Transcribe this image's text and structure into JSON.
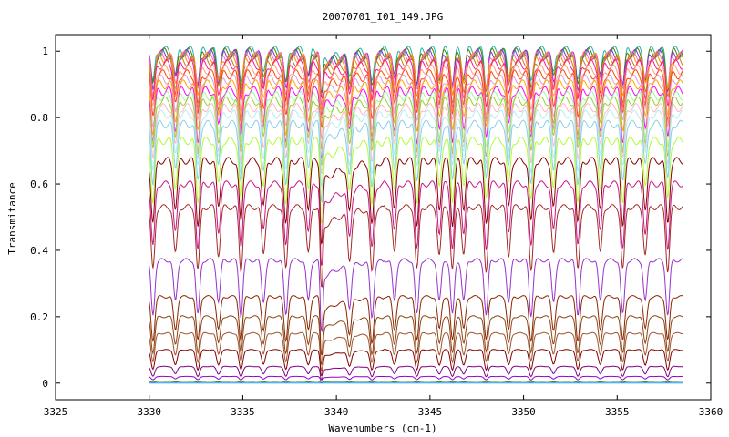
{
  "chart_data": {
    "type": "line",
    "title": "20070701_I01_149.JPG",
    "xlabel": "Wavenumbers (cm-1)",
    "ylabel": "Transmitance",
    "xlim": [
      3325,
      3360
    ],
    "ylim": [
      -0.05,
      1.05
    ],
    "x_ticks": [
      3325,
      3330,
      3335,
      3340,
      3345,
      3350,
      3355,
      3360
    ],
    "y_ticks": [
      0,
      0.2,
      0.4,
      0.6,
      0.8,
      1
    ],
    "x_tick_labels": [
      "3325",
      "3330",
      "3335",
      "3340",
      "3345",
      "3350",
      "3355",
      "3360"
    ],
    "y_tick_labels": [
      "0",
      "0.2",
      "0.4",
      "0.6",
      "0.8",
      "1"
    ],
    "grid": false,
    "legend": "none",
    "x_range_of_series": [
      3330,
      3358.5
    ],
    "line_positions_cm1": [
      3330.2,
      3331.4,
      3332.6,
      3333.7,
      3334.9,
      3336.1,
      3337.3,
      3338.5,
      3339.2,
      3340.7,
      3341.9,
      3343.1,
      3344.3,
      3345.5,
      3346.2,
      3346.8,
      3348.0,
      3349.2,
      3350.4,
      3351.6,
      3352.9,
      3354.1,
      3355.3,
      3356.5,
      3357.7
    ],
    "series": [
      {
        "baseline": 1.0,
        "color": "#20b2aa"
      },
      {
        "baseline": 0.995,
        "color": "#4a7f00"
      },
      {
        "baseline": 0.99,
        "color": "#8a2be2"
      },
      {
        "baseline": 0.985,
        "color": "#ff69b4"
      },
      {
        "baseline": 0.98,
        "color": "#ff8c00"
      },
      {
        "baseline": 0.97,
        "color": "#b8860b"
      },
      {
        "baseline": 0.96,
        "color": "#ff1493"
      },
      {
        "baseline": 0.945,
        "color": "#ffa07a"
      },
      {
        "baseline": 0.93,
        "color": "#ff4500"
      },
      {
        "baseline": 0.915,
        "color": "#dda0dd"
      },
      {
        "baseline": 0.9,
        "color": "#ffa500"
      },
      {
        "baseline": 0.88,
        "color": "#ff00ff"
      },
      {
        "baseline": 0.865,
        "color": "#98fb98"
      },
      {
        "baseline": 0.85,
        "color": "#9acd32"
      },
      {
        "baseline": 0.83,
        "color": "#ffb6c1"
      },
      {
        "baseline": 0.81,
        "color": "#afeeee"
      },
      {
        "baseline": 0.78,
        "color": "#87ceeb"
      },
      {
        "baseline": 0.73,
        "color": "#adff2f"
      },
      {
        "baseline": 0.67,
        "color": "#8b0000"
      },
      {
        "baseline": 0.6,
        "color": "#c71585"
      },
      {
        "baseline": 0.53,
        "color": "#a52a2a"
      },
      {
        "baseline": 0.37,
        "color": "#9932cc"
      },
      {
        "baseline": 0.26,
        "color": "#8b2500"
      },
      {
        "baseline": 0.2,
        "color": "#8b4513"
      },
      {
        "baseline": 0.15,
        "color": "#a0522d"
      },
      {
        "baseline": 0.1,
        "color": "#800000"
      },
      {
        "baseline": 0.05,
        "color": "#800080"
      },
      {
        "baseline": 0.02,
        "color": "#9400d3"
      },
      {
        "baseline": 0.005,
        "color": "#228b22"
      },
      {
        "baseline": 0.0,
        "color": "#1e90ff"
      }
    ]
  }
}
